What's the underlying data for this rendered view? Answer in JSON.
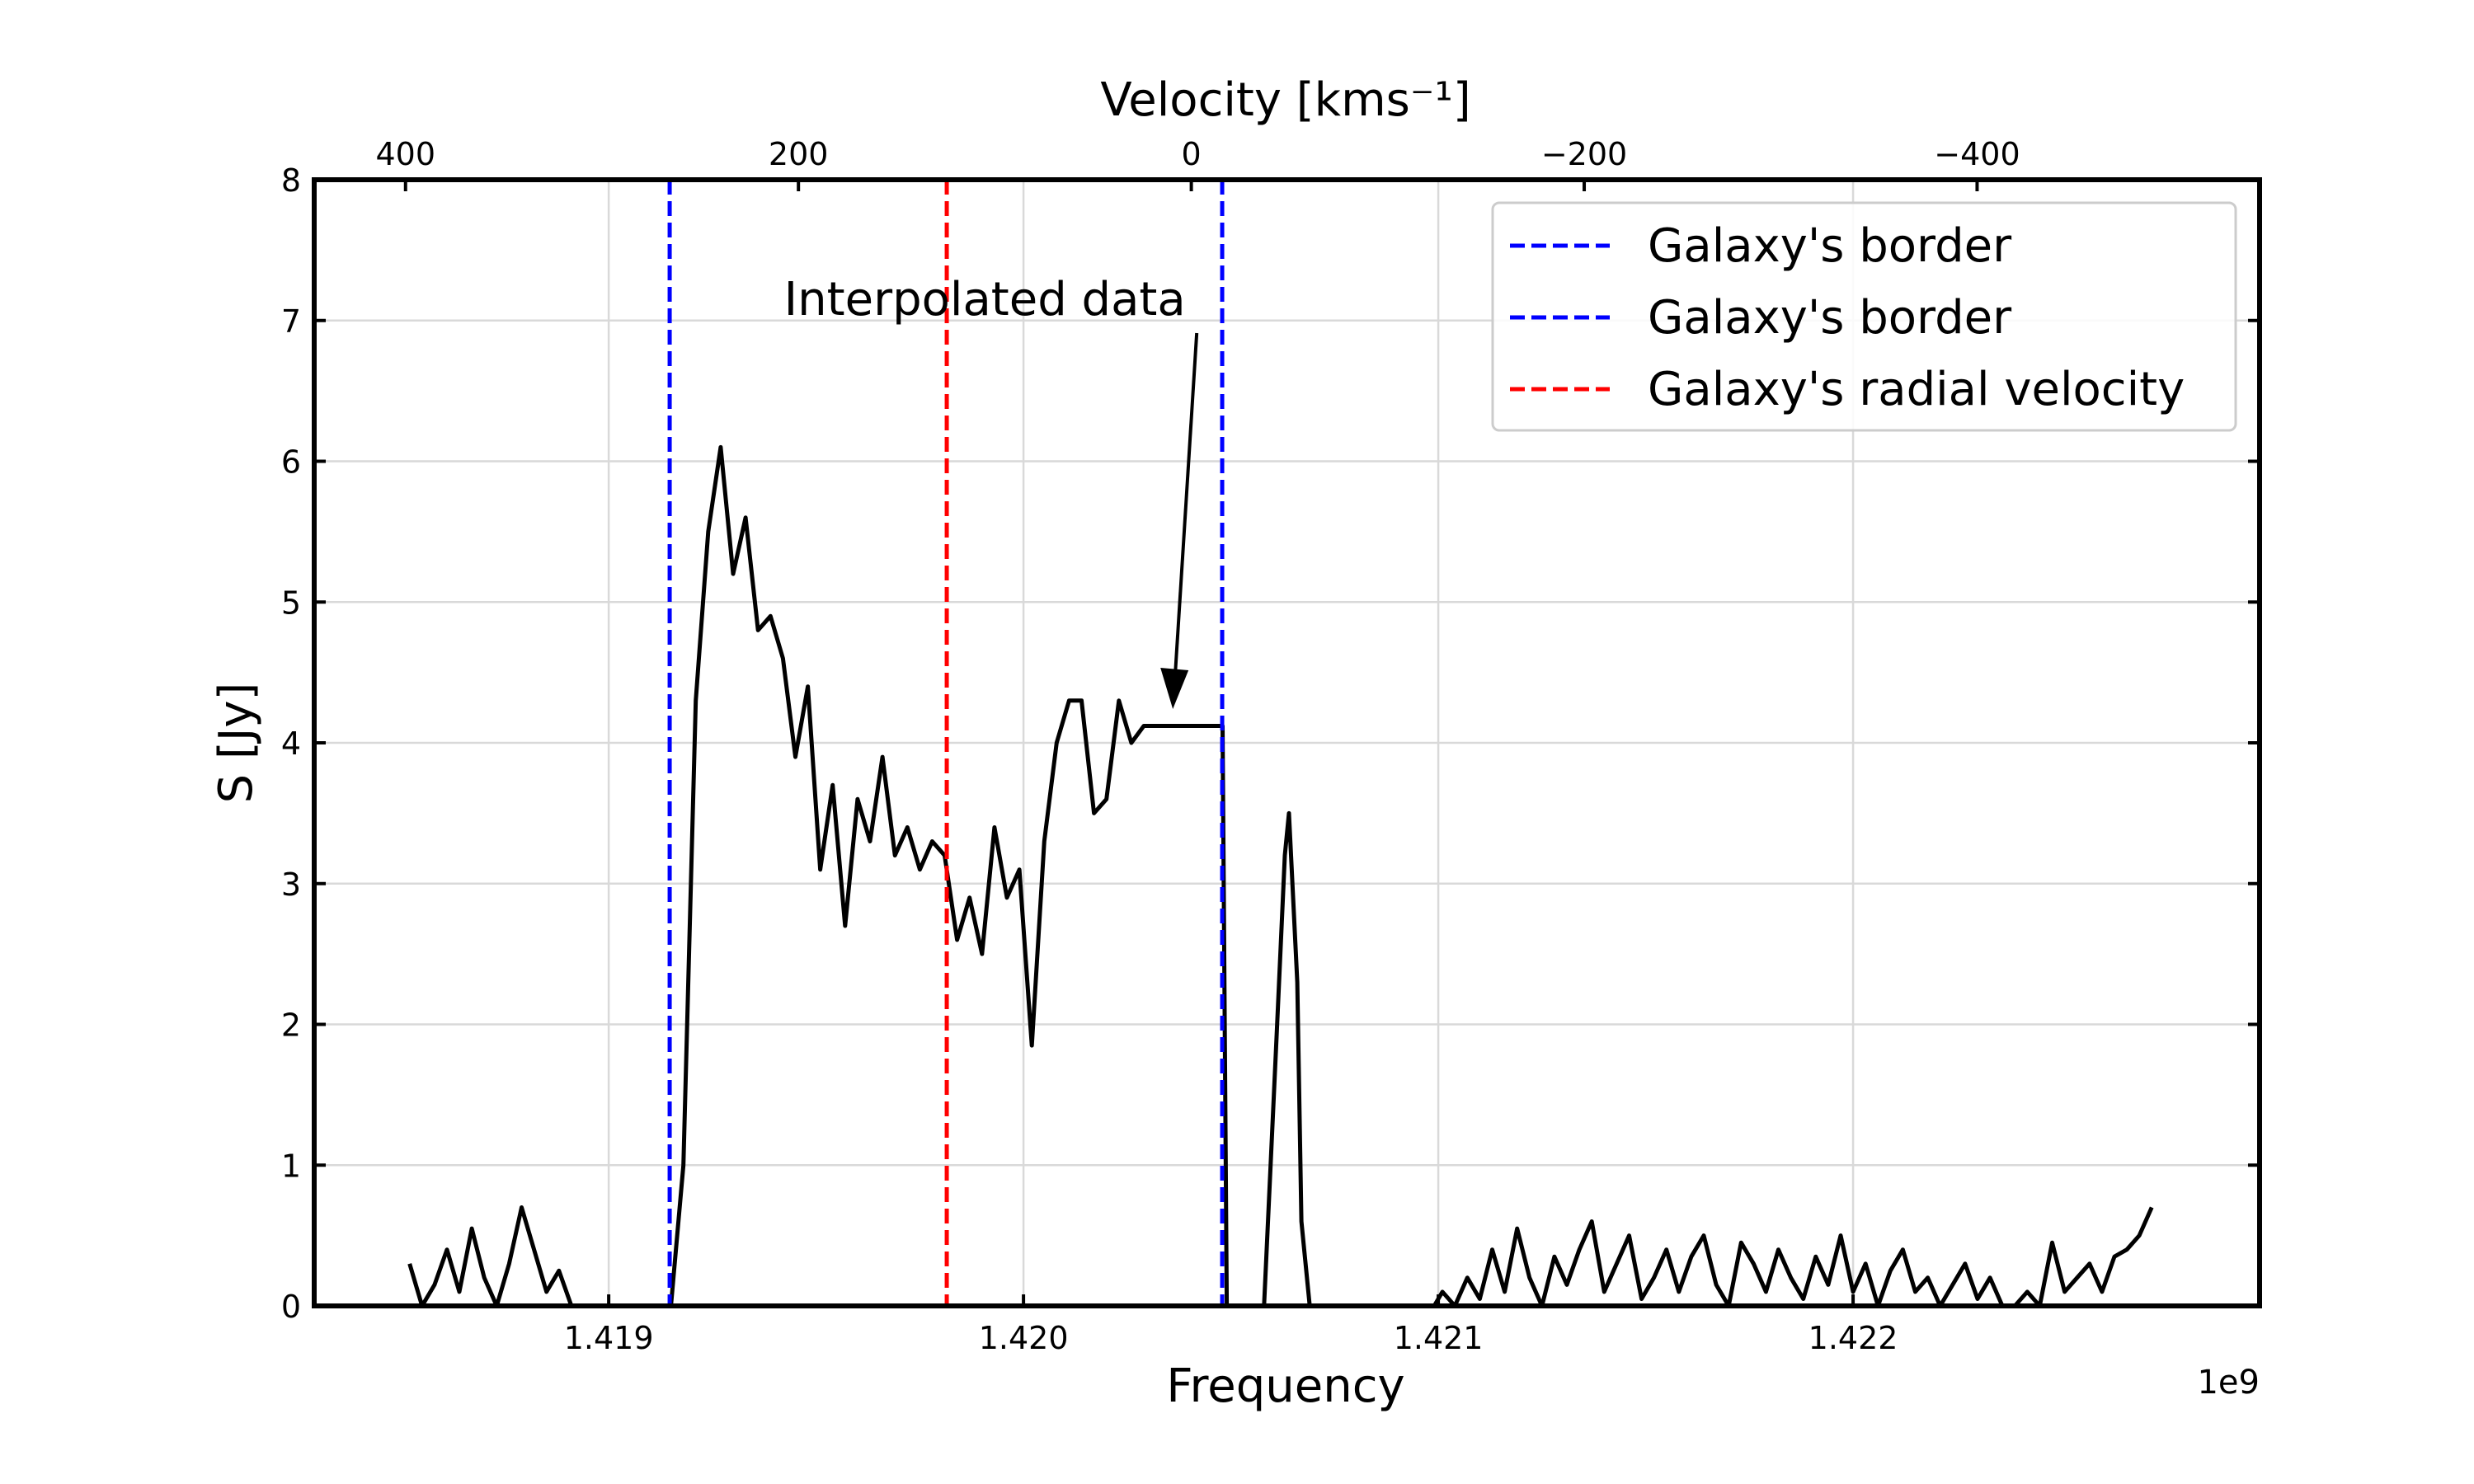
{
  "chart_data": {
    "type": "line",
    "xlabel": "Frequency",
    "ylabel": "S [Jy]",
    "x2label": "Velocity [kms⁻¹]",
    "x_offset_label": "1e9",
    "xlim": [
      1.41829,
      1.42298
    ],
    "xticks": [
      1.419,
      {
        "value": 1.42,
        "label": "1.420"
      },
      1.421,
      1.422
    ],
    "x2lim": [
      446.5,
      -543.8
    ],
    "x2ticks": [
      400,
      200,
      0,
      {
        "value": -200,
        "label": "−200"
      },
      {
        "value": -400,
        "label": "−400"
      }
    ],
    "ylim": [
      0,
      8
    ],
    "yticks": [
      0,
      1,
      2,
      3,
      4,
      5,
      6,
      7,
      8
    ],
    "grid": true,
    "legend": "upper right",
    "series": [
      {
        "color": "#000000",
        "x": [
          1.41852,
          1.41855,
          1.41858,
          1.41861,
          1.41864,
          1.41867,
          1.4187,
          1.41873,
          1.41876,
          1.41879,
          1.41882,
          1.41885,
          1.41888,
          1.41891,
          1.419,
          1.4191,
          1.41915,
          1.41918,
          1.41921,
          1.41924,
          1.41927,
          1.4193,
          1.41933,
          1.41936,
          1.41939,
          1.41942,
          1.41945,
          1.41948,
          1.41951,
          1.41954,
          1.41957,
          1.4196,
          1.41963,
          1.41966,
          1.41969,
          1.41972,
          1.41975,
          1.41978,
          1.41981,
          1.41984,
          1.41987,
          1.4199,
          1.41993,
          1.41996,
          1.41999,
          1.42002,
          1.42005,
          1.42008,
          1.42011,
          1.42014,
          1.42017,
          1.4202,
          1.42023,
          1.42026,
          1.42029,
          1.42032,
          1.42035,
          1.42038,
          1.42041,
          1.42044,
          1.42047,
          1.42048,
          1.42049,
          1.42058,
          1.42061,
          1.42063,
          1.42064,
          1.42066,
          1.42067,
          1.42069,
          1.42099,
          1.42101,
          1.42104,
          1.42107,
          1.4211,
          1.42113,
          1.42116,
          1.42119,
          1.42122,
          1.42125,
          1.42128,
          1.42131,
          1.42134,
          1.42137,
          1.4214,
          1.42143,
          1.42146,
          1.42149,
          1.42152,
          1.42155,
          1.42158,
          1.42161,
          1.42164,
          1.42167,
          1.4217,
          1.42173,
          1.42176,
          1.42179,
          1.42182,
          1.42185,
          1.42188,
          1.42191,
          1.42194,
          1.42197,
          1.422,
          1.42203,
          1.42206,
          1.42209,
          1.42212,
          1.42215,
          1.42218,
          1.42221,
          1.42224,
          1.42227,
          1.4223,
          1.42233,
          1.42236,
          1.42239,
          1.42242,
          1.42245,
          1.42248,
          1.42251,
          1.42254,
          1.42257,
          1.4226,
          1.42263,
          1.42266,
          1.42269,
          1.42272
        ],
        "values": [
          0.3,
          0,
          0.15,
          0.4,
          0.1,
          0.55,
          0.2,
          0,
          0.3,
          0.7,
          0.4,
          0.1,
          0.25,
          0,
          0,
          0,
          0,
          1.0,
          4.3,
          5.5,
          6.1,
          5.2,
          5.6,
          4.8,
          4.9,
          4.6,
          3.9,
          4.4,
          3.1,
          3.7,
          2.7,
          3.6,
          3.3,
          3.9,
          3.2,
          3.4,
          3.1,
          3.3,
          3.2,
          2.6,
          2.9,
          2.5,
          3.4,
          2.9,
          3.1,
          1.85,
          3.3,
          4.0,
          4.3,
          4.3,
          3.5,
          3.6,
          4.3,
          4.0,
          4.12,
          4.12,
          4.12,
          4.12,
          4.12,
          4.12,
          4.12,
          4.12,
          0,
          0,
          1.9,
          3.2,
          3.5,
          2.3,
          0.6,
          0,
          0,
          0.1,
          0,
          0.2,
          0.05,
          0.4,
          0.1,
          0.55,
          0.2,
          0,
          0.35,
          0.15,
          0.4,
          0.6,
          0.1,
          0.3,
          0.5,
          0.05,
          0.2,
          0.4,
          0.1,
          0.35,
          0.5,
          0.15,
          0,
          0.45,
          0.3,
          0.1,
          0.4,
          0.2,
          0.05,
          0.35,
          0.15,
          0.5,
          0.1,
          0.3,
          0,
          0.25,
          0.4,
          0.1,
          0.2,
          0,
          0.15,
          0.3,
          0.05,
          0.2,
          0,
          0,
          0.1,
          0,
          0.45,
          0.1,
          0.2,
          0.3,
          0.1,
          0.35,
          0.4,
          0.5,
          0.7
        ]
      }
    ],
    "vlines": [
      {
        "name": "Galaxy's border",
        "color": "#0000ff",
        "x": 1.419147
      },
      {
        "name": "Galaxy's border",
        "color": "#0000ff",
        "x": 1.420479
      },
      {
        "name": "Galaxy's radial velocity",
        "color": "#ff0000",
        "x": 1.419815
      }
    ],
    "annotations": [
      {
        "text": "Interpolated data",
        "x": 1.42036,
        "y": 4.24
      }
    ]
  }
}
